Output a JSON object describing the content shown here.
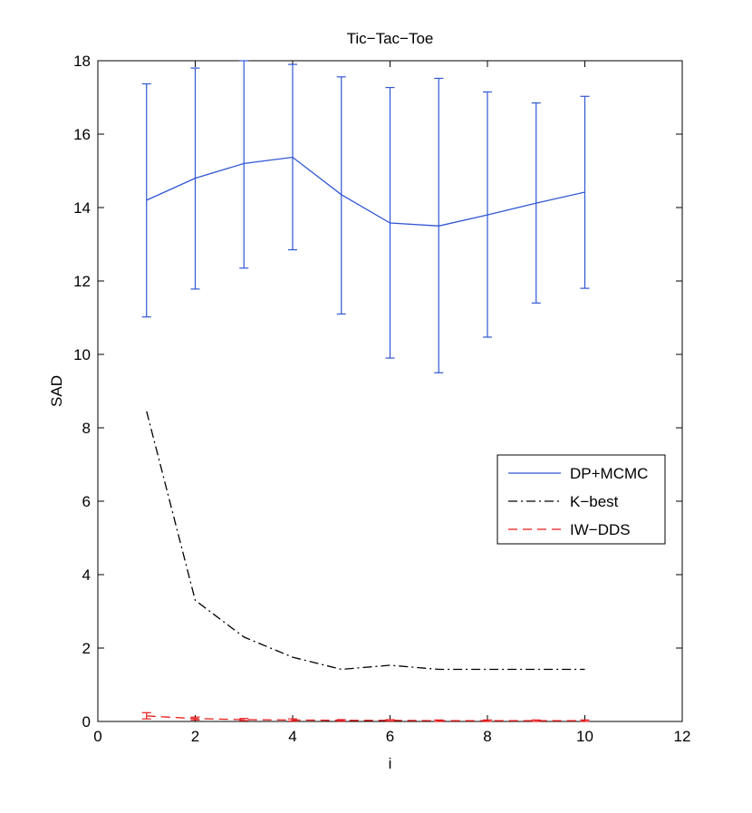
{
  "chart_data": {
    "type": "line",
    "title": "Tic−Tac−Toe",
    "xlabel": "i",
    "ylabel": "SAD",
    "xlim": [
      0,
      12
    ],
    "ylim": [
      0,
      18
    ],
    "xticks": [
      0,
      2,
      4,
      6,
      8,
      10,
      12
    ],
    "yticks": [
      0,
      2,
      4,
      6,
      8,
      10,
      12,
      14,
      16,
      18
    ],
    "grid": false,
    "legend_position": "right",
    "x": [
      1,
      2,
      3,
      4,
      5,
      6,
      7,
      8,
      9,
      10
    ],
    "series": [
      {
        "name": "DP+MCMC",
        "color": "#3056d3",
        "line_style": "solid",
        "values": [
          14.2,
          14.8,
          15.2,
          15.37,
          14.35,
          13.58,
          13.5,
          13.8,
          14.12,
          14.42
        ],
        "err_low": [
          11.02,
          11.78,
          12.35,
          12.85,
          11.1,
          9.9,
          9.5,
          10.47,
          11.4,
          11.8
        ],
        "err_high": [
          17.37,
          17.8,
          18.0,
          17.9,
          17.56,
          17.27,
          17.52,
          17.15,
          16.85,
          17.03
        ]
      },
      {
        "name": "K−best",
        "color": "#000000",
        "line_style": "dashdot",
        "values": [
          8.45,
          3.3,
          2.3,
          1.75,
          1.42,
          1.53,
          1.42,
          1.42,
          1.42,
          1.42
        ]
      },
      {
        "name": "IW−DDS",
        "color": "#e31a1c",
        "line_style": "dashed",
        "values": [
          0.15,
          0.08,
          0.05,
          0.04,
          0.03,
          0.03,
          0.02,
          0.02,
          0.02,
          0.02
        ],
        "err_low": [
          0.07,
          0.04,
          0.02,
          0.01,
          0.01,
          0.01,
          0.0,
          0.0,
          0.0,
          0.0
        ],
        "err_high": [
          0.24,
          0.12,
          0.08,
          0.07,
          0.05,
          0.05,
          0.04,
          0.04,
          0.04,
          0.04
        ]
      }
    ]
  }
}
